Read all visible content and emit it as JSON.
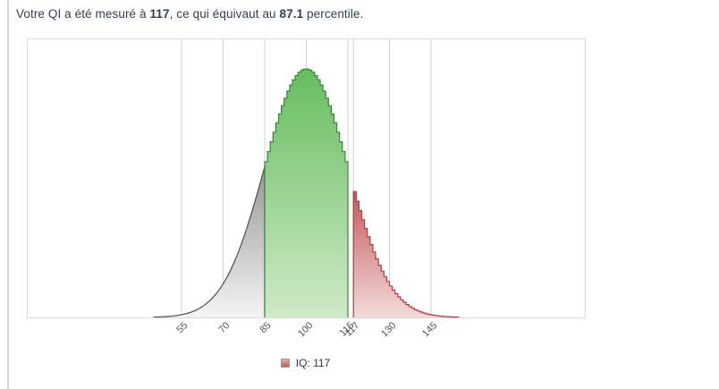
{
  "page": {
    "background": "#ffffff",
    "accent_line_color": "#b9ddee"
  },
  "header": {
    "prefix": "Votre QI a été mesuré à ",
    "score": "117",
    "middle": ", ce qui équivaut au ",
    "percentile": "87.1",
    "suffix": " percentile.",
    "text_color": "#2e4053"
  },
  "chart": {
    "plot_border_color": "#d9d9d9",
    "gridline_color": "#cfcfcf",
    "axis_label_color": "#545454",
    "chart_data": {
      "type": "area",
      "title": "",
      "xlabel": "",
      "ylabel": "",
      "grid": true,
      "legend_position": "bottom-center",
      "distribution": {
        "kind": "normal",
        "mean": 100,
        "sd": 15,
        "x_range": [
          45,
          155
        ]
      },
      "x_ticks": [
        55,
        70,
        85,
        100,
        115,
        117,
        130,
        145
      ],
      "x_tick_labels": [
        "55",
        "70",
        "85",
        "100",
        "115",
        "117",
        "130",
        "145"
      ],
      "regions": [
        {
          "name": "left-tail-gray",
          "from": 45,
          "to": 85,
          "style": "smooth",
          "fill_top": "#969696",
          "fill_bottom": "#f4f4f4",
          "stroke": "#4d4d4d"
        },
        {
          "name": "band-85-115-green",
          "from": 85,
          "to": 115,
          "style": "stepped",
          "fill_top": "#67bd5e",
          "fill_bottom": "#cfe9c8",
          "stroke": "#38843c"
        },
        {
          "name": "above-117-red",
          "from": 117,
          "to": 155,
          "style": "stepped",
          "fill_top": "#c75a5d",
          "fill_bottom": "#f2dada",
          "stroke": "#ae3a3d"
        }
      ],
      "marker": {
        "iq": 117,
        "percentile": 87.1
      },
      "legend": [
        {
          "label": "IQ: 117",
          "swatch_fill_top": "#e9a9aa",
          "swatch_fill_bottom": "#c4595c",
          "swatch_border": "#999999"
        }
      ]
    }
  }
}
